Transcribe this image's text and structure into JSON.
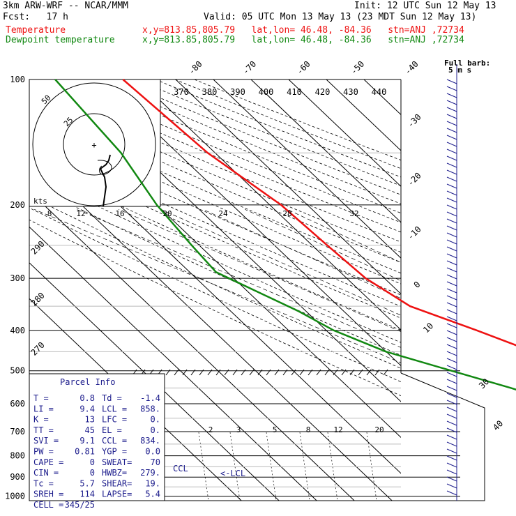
{
  "header": {
    "model": "3km ARW-WRF -- NCAR/MMM",
    "init": "Init: 12 UTC Sun 12 May 13",
    "fcst": "Fcst:   17 h",
    "valid": "Valid: 05 UTC Mon 13 May 13 (23 MDT Sun 12 May 13)",
    "temp_label": "Temperature",
    "dew_label": "Dewpoint temperature",
    "temp_loc": "x,y=813.85,805.79   lat,lon= 46.48, -84.36   stn=ANJ ,72734",
    "dew_loc": "x,y=813.85,805.79   lat,lon= 46.48, -84.36   stn=ANJ ,72734"
  },
  "colors": {
    "temperature": "#ee1111",
    "dewpoint": "#118811",
    "parcel": "#1c1c8c",
    "wind": "#1c1c8c"
  },
  "chart_data": {
    "type": "line",
    "subtype": "skew-T log-P sounding",
    "pressure_ticks": [
      "100",
      "200",
      "300",
      "400",
      "500",
      "600",
      "700",
      "800",
      "900",
      "1000"
    ],
    "temp_ticks_top": [
      "-80",
      "-70",
      "-60",
      "-50",
      "-40"
    ],
    "temp_ticks_right": [
      "-30",
      "-20",
      "-10",
      "0",
      "10",
      "30",
      "40"
    ],
    "theta_e_labels": [
      "370",
      "380",
      "390",
      "400",
      "410",
      "420",
      "430",
      "440"
    ],
    "mixing_ratio_labels": [
      "2",
      "3",
      "5",
      "8",
      "12",
      "20"
    ],
    "theta_labels": [
      "290",
      "280",
      "270"
    ],
    "hodo_speed_unit": "kts",
    "hodo_speed_ticks": [
      "8",
      "12",
      "16",
      "20",
      "24",
      "28",
      "32"
    ],
    "hodo_ring_labels": [
      "50",
      "25"
    ],
    "wind_legend_1": "Full barb:",
    "wind_legend_2": "5 m s",
    "series": [
      {
        "name": "Temperature",
        "points": [
          [
            100,
            -54
          ],
          [
            150,
            -52
          ],
          [
            200,
            -47
          ],
          [
            250,
            -46
          ],
          [
            300,
            -45
          ],
          [
            350,
            -41
          ],
          [
            400,
            -30
          ],
          [
            450,
            -21
          ],
          [
            500,
            -12
          ],
          [
            550,
            -7
          ],
          [
            600,
            -4
          ],
          [
            650,
            -2
          ],
          [
            700,
            -1
          ],
          [
            750,
            0.5
          ],
          [
            800,
            1.5
          ],
          [
            850,
            3
          ],
          [
            900,
            4.5
          ],
          [
            950,
            5.7
          ],
          [
            975,
            6
          ]
        ]
      },
      {
        "name": "Dewpoint temperature",
        "points": [
          [
            100,
            -72
          ],
          [
            150,
            -75
          ],
          [
            200,
            -80
          ],
          [
            250,
            -82
          ],
          [
            290,
            -83
          ],
          [
            320,
            -78
          ],
          [
            360,
            -72
          ],
          [
            400,
            -68
          ],
          [
            450,
            -60
          ],
          [
            500,
            -48
          ],
          [
            550,
            -37
          ],
          [
            600,
            -28
          ],
          [
            650,
            -22
          ],
          [
            700,
            -16
          ],
          [
            750,
            -11
          ],
          [
            800,
            -6
          ],
          [
            850,
            -3
          ],
          [
            900,
            -2
          ],
          [
            950,
            -1.4
          ],
          [
            975,
            -1
          ]
        ]
      }
    ],
    "wind_barbs": {
      "count": 60,
      "speed_label_unit": "5 m s-1"
    }
  },
  "parcel_info": {
    "title": "Parcel Info",
    "rows": [
      [
        "T  =",
        "0.8",
        "Td =",
        "-1.4"
      ],
      [
        "LI =",
        "9.4",
        "LCL =",
        "858."
      ],
      [
        "K  =",
        "13",
        "LFC =",
        "0."
      ],
      [
        "TT =",
        "45",
        "EL  =",
        "0."
      ],
      [
        "SVI =",
        "9.1",
        "CCL =",
        "834."
      ],
      [
        "PW  =",
        "0.81",
        "YGP =",
        "0.0"
      ],
      [
        "CAPE =",
        "0",
        "SWEAT=",
        "70"
      ],
      [
        "CIN  =",
        "0",
        "HWBZ=",
        "279."
      ],
      [
        "Tc  =",
        "5.7",
        "SHEAR=",
        "19."
      ],
      [
        "SREH =",
        "114",
        "LAPSE=",
        "5.4"
      ],
      [
        "CELL =",
        "345/25",
        "",
        ""
      ]
    ]
  },
  "annotations": {
    "ccl": "CCL",
    "lcl": "<-LCL"
  }
}
